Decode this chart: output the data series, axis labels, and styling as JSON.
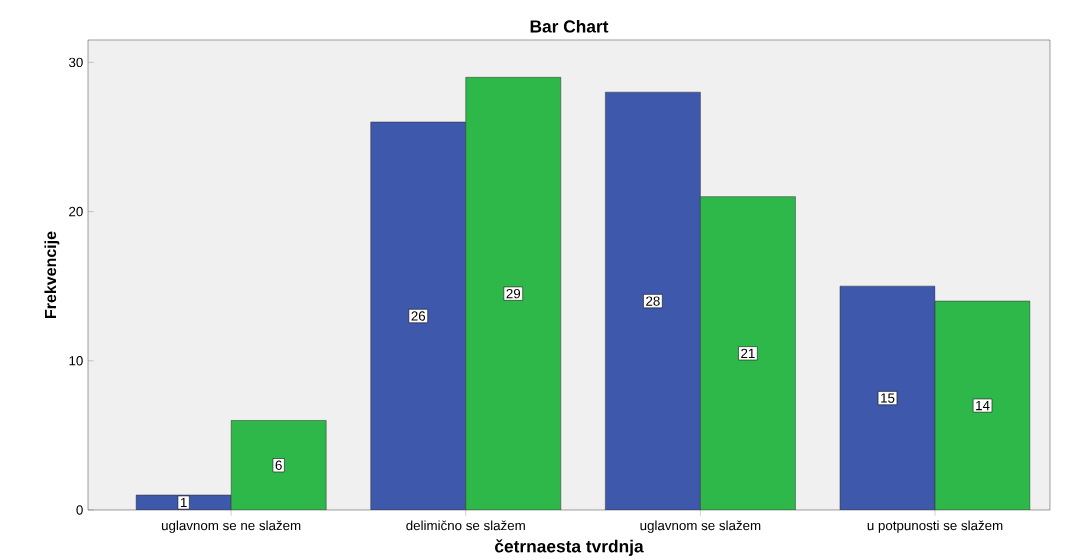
{
  "chart_data": {
    "type": "bar",
    "title": "Bar Chart",
    "xlabel": "četrnaesta tvrdnja",
    "ylabel": "Frekvencije",
    "categories": [
      "uglavnom se ne slažem",
      "delimično se slažem",
      "uglavnom se slažem",
      "u potpunosti se slažem"
    ],
    "series": [
      {
        "color": "#3e58ac",
        "values": [
          1,
          26,
          28,
          15
        ]
      },
      {
        "color": "#2eb84a",
        "values": [
          6,
          29,
          21,
          14
        ]
      }
    ],
    "ylim": [
      0,
      31.5
    ],
    "yticks": [
      0,
      10,
      20,
      30
    ],
    "data_labels": true,
    "grid": false
  }
}
